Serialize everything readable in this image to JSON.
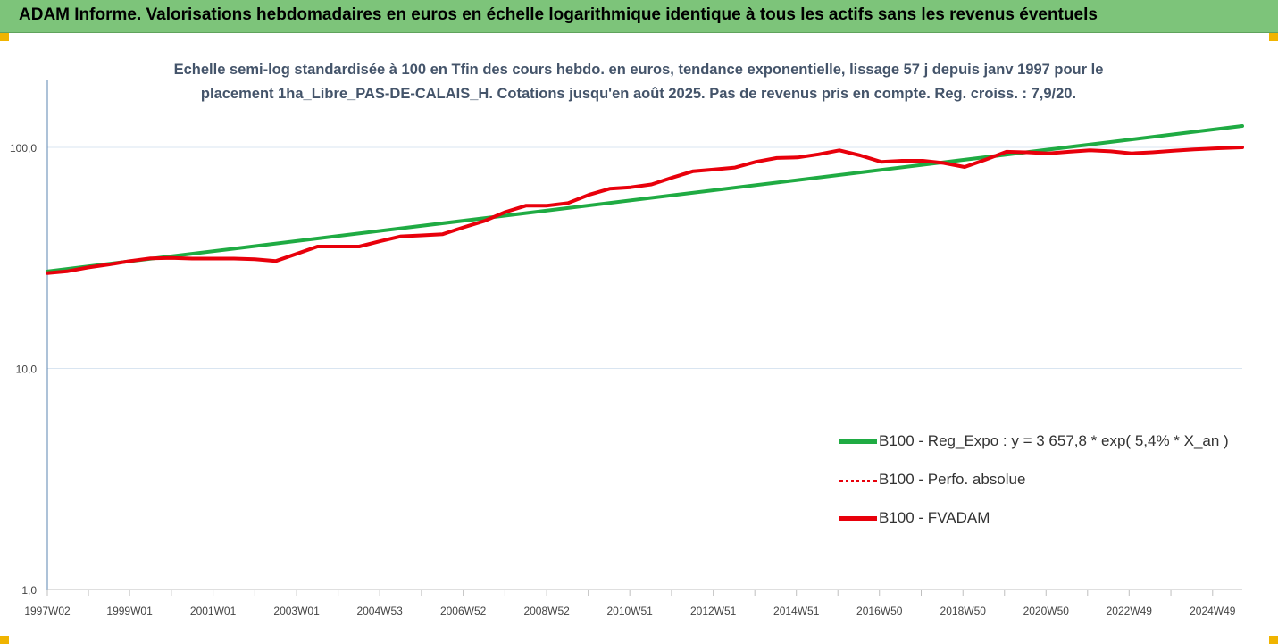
{
  "banner": {
    "title": "ADAM Informe. Valorisations hebdomadaires en euros en échelle logarithmique identique à tous les actifs sans les revenus éventuels"
  },
  "colors": {
    "banner_bg": "#7dc47a",
    "trend": "#1fab43",
    "perf": "#e8000b",
    "fvadam": "#e8000b",
    "grid": "#d9e5f1",
    "axis": "#5b84b1"
  },
  "chart_data": {
    "type": "line",
    "subtitle_lines": [
      "Echelle semi-log standardisée à 100 en Tfin des cours hebdo. en euros, tendance exponentielle, lissage 57 j depuis janv 1997 pour le",
      "placement 1ha_Libre_PAS-DE-CALAIS_H. Cotations jusqu'en août 2025. Pas de revenus pris en compte. Reg. croiss. : 7,9/20."
    ],
    "y_scale": "log",
    "ylim": [
      1,
      200
    ],
    "y_ticks": [
      1,
      10,
      100
    ],
    "y_tick_labels": [
      "1,0",
      "10,0",
      "100,0"
    ],
    "xlim": [
      1997.03,
      2025.65
    ],
    "x_ticks": [
      1997.03,
      1999.0,
      2001.0,
      2003.0,
      2004.99,
      2006.99,
      2008.99,
      2010.98,
      2012.98,
      2014.97,
      2016.96,
      2018.96,
      2020.95,
      2022.94,
      2024.94
    ],
    "x_tick_labels": [
      "1997W02",
      "1999W01",
      "2001W01",
      "2003W01",
      "2004W53",
      "2006W52",
      "2008W52",
      "2010W51",
      "2012W51",
      "2014W51",
      "2016W50",
      "2018W50",
      "2020W50",
      "2022W49",
      "2024W49"
    ],
    "grid": "horizontal",
    "legend_position": "right",
    "series": [
      {
        "name": "B100 - Reg_Expo : y = 3 657,8 * exp( 5,4% *  X_an )",
        "style": "solid-green",
        "x": [
          1997.03,
          2025.65
        ],
        "y": [
          27.5,
          125
        ]
      },
      {
        "name": "B100 - Perfo. absolue",
        "style": "dotted-red",
        "x": [
          1997.03,
          1997.5,
          1998.0,
          1998.5,
          1999.0,
          1999.5,
          2000.0,
          2000.5,
          2001.0,
          2001.5,
          2002.0,
          2002.5,
          2003.0,
          2003.5,
          2004.0,
          2004.5,
          2005.0,
          2005.5,
          2006.0,
          2006.5,
          2007.0,
          2007.5,
          2008.0,
          2008.5,
          2009.0,
          2009.5,
          2010.0,
          2010.5,
          2011.0,
          2011.5,
          2012.0,
          2012.5,
          2013.0,
          2013.5,
          2014.0,
          2014.5,
          2015.0,
          2015.5,
          2016.0,
          2016.5,
          2017.0,
          2017.5,
          2018.0,
          2018.5,
          2019.0,
          2019.5,
          2020.0,
          2020.5,
          2021.0,
          2021.5,
          2022.0,
          2022.5,
          2023.0,
          2023.5,
          2024.0,
          2024.5,
          2025.0,
          2025.65
        ],
        "y": [
          27.0,
          27.5,
          28.6,
          29.5,
          30.6,
          31.5,
          31.6,
          31.4,
          31.4,
          31.4,
          31.2,
          30.6,
          33.0,
          35.6,
          35.6,
          35.6,
          37.6,
          39.6,
          40.0,
          40.5,
          43.5,
          46.5,
          51.0,
          54.5,
          54.5,
          56.0,
          61.0,
          65.0,
          66.0,
          68.0,
          73.0,
          78.0,
          79.5,
          81.0,
          86.0,
          89.5,
          90.0,
          93.0,
          97.0,
          92.0,
          86.0,
          87.0,
          87.0,
          85.0,
          81.5,
          88.0,
          95.5,
          95.0,
          94.0,
          95.5,
          97.0,
          96.0,
          94.0,
          95.0,
          96.5,
          98.0,
          99.0,
          100.0
        ]
      },
      {
        "name": "B100 - FVADAM",
        "style": "solid-red",
        "x": [
          1997.03,
          1997.5,
          1998.0,
          1998.5,
          1999.0,
          1999.5,
          2000.0,
          2000.5,
          2001.0,
          2001.5,
          2002.0,
          2002.5,
          2003.0,
          2003.5,
          2004.0,
          2004.5,
          2005.0,
          2005.5,
          2006.0,
          2006.5,
          2007.0,
          2007.5,
          2008.0,
          2008.5,
          2009.0,
          2009.5,
          2010.0,
          2010.5,
          2011.0,
          2011.5,
          2012.0,
          2012.5,
          2013.0,
          2013.5,
          2014.0,
          2014.5,
          2015.0,
          2015.5,
          2016.0,
          2016.5,
          2017.0,
          2017.5,
          2018.0,
          2018.5,
          2019.0,
          2019.5,
          2020.0,
          2020.5,
          2021.0,
          2021.5,
          2022.0,
          2022.5,
          2023.0,
          2023.5,
          2024.0,
          2024.5,
          2025.0,
          2025.65
        ],
        "y": [
          27.0,
          27.5,
          28.6,
          29.5,
          30.6,
          31.5,
          31.6,
          31.4,
          31.4,
          31.4,
          31.2,
          30.6,
          33.0,
          35.6,
          35.6,
          35.6,
          37.6,
          39.6,
          40.0,
          40.5,
          43.5,
          46.5,
          51.0,
          54.5,
          54.5,
          56.0,
          61.0,
          65.0,
          66.0,
          68.0,
          73.0,
          78.0,
          79.5,
          81.0,
          86.0,
          89.5,
          90.0,
          93.0,
          97.0,
          92.0,
          86.0,
          87.0,
          87.0,
          85.0,
          81.5,
          88.0,
          95.5,
          95.0,
          94.0,
          95.5,
          97.0,
          96.0,
          94.0,
          95.0,
          96.5,
          98.0,
          99.0,
          100.0
        ]
      }
    ]
  }
}
